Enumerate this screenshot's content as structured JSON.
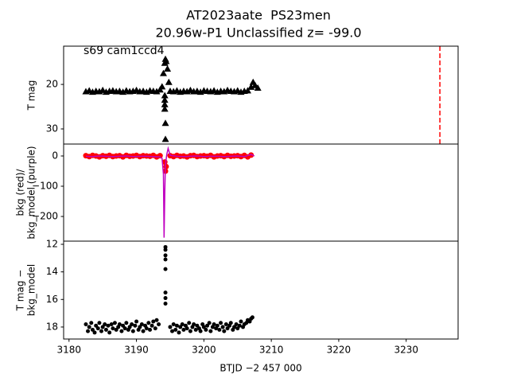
{
  "chart_data": [
    {
      "type": "scatter",
      "title": [
        "AT2023aate  PS23men",
        "20.96w-P1 Unclassified z= -99.0"
      ],
      "annotation": "s69 cam1ccd4",
      "ylabel": [
        "T mag"
      ],
      "xlim": [
        3179.2,
        3237.7
      ],
      "ylim": [
        33.4,
        11.4
      ],
      "yticks": [
        20,
        30
      ],
      "vlines": [
        {
          "x": 3235.0,
          "color": "#ff0000"
        }
      ],
      "series": [
        {
          "color": "#000000",
          "marker": "triangle",
          "x": [
            3182.5,
            3183,
            3183.5,
            3184,
            3184.5,
            3185,
            3185.5,
            3186,
            3186.5,
            3187,
            3187.5,
            3188,
            3188.5,
            3189,
            3189.5,
            3190,
            3190.5,
            3191,
            3191.5,
            3192,
            3192.5,
            3193,
            3193.5,
            3193.8,
            3194.0,
            3194.2,
            3194.3,
            3194.4,
            3194.6,
            3194.8,
            3194.2,
            3194.2,
            3194.2,
            3194.2,
            3194.3,
            3194.3,
            3195,
            3195.5,
            3196,
            3196.5,
            3197,
            3197.5,
            3198,
            3198.5,
            3199,
            3199.5,
            3200,
            3200.5,
            3201,
            3201.5,
            3202,
            3202.5,
            3203,
            3203.5,
            3204,
            3204.5,
            3205,
            3205.5,
            3206,
            3206.5,
            3207,
            3207.3,
            3207.6,
            3208
          ],
          "values": [
            21.6,
            21.4,
            21.7,
            21.5,
            21.6,
            21.3,
            21.7,
            21.5,
            21.4,
            21.6,
            21.5,
            21.7,
            21.4,
            21.6,
            21.5,
            21.3,
            21.6,
            21.5,
            21.7,
            21.4,
            21.5,
            21.6,
            21.2,
            20.5,
            17.5,
            15.2,
            14.3,
            14.8,
            16.5,
            19.5,
            22.5,
            23.5,
            24.5,
            25.5,
            28.7,
            32.3,
            21.5,
            21.6,
            21.4,
            21.7,
            21.5,
            21.6,
            21.3,
            21.6,
            21.5,
            21.7,
            21.4,
            21.5,
            21.6,
            21.4,
            21.7,
            21.5,
            21.6,
            21.3,
            21.5,
            21.6,
            21.4,
            21.7,
            21.5,
            21.4,
            20.6,
            19.5,
            20.2,
            20.8
          ]
        }
      ]
    },
    {
      "type": "scatter",
      "ylabel": [
        "bkg (red)/",
        "bkg_model (purple)"
      ],
      "xlim": [
        3179.2,
        3237.7
      ],
      "ylim": [
        -281.6,
        39.5
      ],
      "yticks": [
        0,
        {
          "value": -100,
          "label": "−100"
        },
        {
          "value": -200,
          "label": "−200"
        }
      ],
      "series": [
        {
          "color": "#ff0000",
          "marker": "circle",
          "x": [
            3182.5,
            3183,
            3183.5,
            3184,
            3184.5,
            3185,
            3185.5,
            3186,
            3186.5,
            3187,
            3187.5,
            3188,
            3188.5,
            3189,
            3189.5,
            3190,
            3190.5,
            3191,
            3191.5,
            3192,
            3192.5,
            3193,
            3193.5,
            3194.2,
            3194.3,
            3194.4,
            3195,
            3195.5,
            3196,
            3196.5,
            3197,
            3197.5,
            3198,
            3198.5,
            3199,
            3199.5,
            3200,
            3200.5,
            3201,
            3201.5,
            3202,
            3202.5,
            3203,
            3203.5,
            3204,
            3204.5,
            3205,
            3205.5,
            3206,
            3206.5,
            3207
          ],
          "values": [
            1,
            -2,
            2,
            0,
            -3,
            1,
            -1,
            2,
            -2,
            0,
            1,
            -3,
            2,
            -1,
            0,
            2,
            -2,
            1,
            0,
            -1,
            2,
            -3,
            1,
            -20,
            -50,
            -35,
            1,
            -2,
            2,
            -1,
            0,
            -3,
            1,
            2,
            -2,
            0,
            1,
            -1,
            2,
            -3,
            0,
            1,
            -2,
            2,
            -1,
            0,
            1,
            -2,
            2,
            -3,
            3
          ]
        },
        {
          "color": "#c000c0",
          "marker": "line",
          "x": [
            3182.5,
            3183.5,
            3184.5,
            3185.5,
            3186.5,
            3187.5,
            3188.5,
            3189.5,
            3190.5,
            3191.5,
            3192.5,
            3193.5,
            3193.8,
            3194.0,
            3194.1,
            3194.2,
            3194.3,
            3194.5,
            3194.7,
            3195,
            3196,
            3197,
            3198,
            3199,
            3200,
            3201,
            3202,
            3203,
            3204,
            3205,
            3206,
            3207,
            3207.5
          ],
          "values": [
            -1,
            -2,
            0,
            -1,
            -2,
            -1,
            0,
            -2,
            -1,
            -1,
            -2,
            -3,
            -8,
            -60,
            -270,
            -120,
            -30,
            5,
            25,
            2,
            -1,
            -2,
            -1,
            0,
            -2,
            -1,
            -1,
            -2,
            -1,
            0,
            -2,
            5,
            0
          ]
        }
      ]
    },
    {
      "type": "scatter",
      "ylabel": [
        "T mag −",
        "bkg_model"
      ],
      "xlabel": "BTJD −2 457 000",
      "xlim": [
        3179.2,
        3237.7
      ],
      "ylim": [
        18.87,
        11.77
      ],
      "yticks": [
        12,
        14,
        16,
        18
      ],
      "xticks": [
        3180,
        3190,
        3200,
        3210,
        3220,
        3230
      ],
      "series": [
        {
          "color": "#000000",
          "marker": "circle",
          "x": [
            3182.5,
            3182.8,
            3183,
            3183.3,
            3183.5,
            3183.8,
            3184,
            3184.3,
            3184.5,
            3184.8,
            3185,
            3185.3,
            3185.5,
            3185.8,
            3186,
            3186.3,
            3186.5,
            3186.8,
            3187,
            3187.3,
            3187.5,
            3187.8,
            3188,
            3188.3,
            3188.5,
            3188.8,
            3189,
            3189.3,
            3189.5,
            3189.8,
            3190,
            3190.3,
            3190.5,
            3190.8,
            3191,
            3191.3,
            3191.5,
            3191.8,
            3192,
            3192.3,
            3192.5,
            3192.8,
            3193,
            3193.3,
            3194.3,
            3194.3,
            3194.3,
            3194.3,
            3194.3,
            3194.3,
            3194.3,
            3194.3,
            3195,
            3195.3,
            3195.5,
            3195.8,
            3196,
            3196.3,
            3196.5,
            3196.8,
            3197,
            3197.3,
            3197.5,
            3197.8,
            3198,
            3198.3,
            3198.5,
            3198.8,
            3199,
            3199.3,
            3199.5,
            3199.8,
            3200,
            3200.3,
            3200.5,
            3200.8,
            3201,
            3201.3,
            3201.5,
            3201.8,
            3202,
            3202.3,
            3202.5,
            3202.8,
            3203,
            3203.3,
            3203.5,
            3203.8,
            3204,
            3204.3,
            3204.5,
            3204.8,
            3205,
            3205.3,
            3205.5,
            3205.8,
            3206,
            3206.3,
            3206.5,
            3206.8,
            3207,
            3207.2
          ],
          "values": [
            17.8,
            18.3,
            18.0,
            17.7,
            18.2,
            18.4,
            17.9,
            18.1,
            17.7,
            18.3,
            18.0,
            17.8,
            18.2,
            17.9,
            18.4,
            17.8,
            18.1,
            17.7,
            18.2,
            18.0,
            17.8,
            18.3,
            17.9,
            18.1,
            17.7,
            18.2,
            18.0,
            17.8,
            18.3,
            17.9,
            17.6,
            18.2,
            18.0,
            17.8,
            18.3,
            17.9,
            18.1,
            17.7,
            18.2,
            17.9,
            17.6,
            18.1,
            17.5,
            17.8,
            12.2,
            12.4,
            12.8,
            13.1,
            13.8,
            15.5,
            15.9,
            16.3,
            18.0,
            18.3,
            17.8,
            18.2,
            17.9,
            18.4,
            18.0,
            17.8,
            18.2,
            17.9,
            18.1,
            17.7,
            18.3,
            18.0,
            17.8,
            18.2,
            17.9,
            18.1,
            18.3,
            17.8,
            18.0,
            18.2,
            17.9,
            17.7,
            18.3,
            18.0,
            17.8,
            18.1,
            17.9,
            18.2,
            17.7,
            18.0,
            18.3,
            17.8,
            18.1,
            17.9,
            17.7,
            18.2,
            18.0,
            17.8,
            18.1,
            17.9,
            17.6,
            18.0,
            17.8,
            17.7,
            17.5,
            17.6,
            17.4,
            17.3
          ]
        }
      ]
    }
  ]
}
